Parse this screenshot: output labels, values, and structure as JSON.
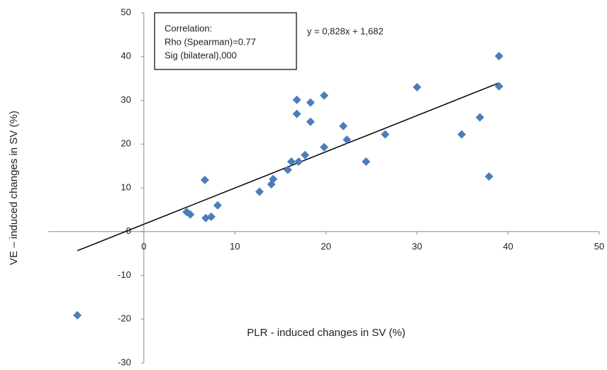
{
  "chart_data": {
    "type": "scatter",
    "x_label": "PLR - induced changes in SV (%)",
    "y_label": "VE – induced changes in SV (%)",
    "annotation": [
      "Correlation:",
      "Rho (Spearman)=0.77",
      "Sig (bilateral),000"
    ],
    "trendline": {
      "slope": 0.828,
      "intercept": 1.682,
      "label": "y = 0,828x + 1,682"
    },
    "xlim": [
      -10.5,
      50
    ],
    "xticks": [
      0,
      10,
      20,
      30,
      40,
      50
    ],
    "ylim": [
      -30,
      50
    ],
    "yticks": [
      -30,
      -20,
      -10,
      0,
      10,
      20,
      30,
      40,
      50
    ],
    "color": "#4a7ebb",
    "x": [
      -7.3,
      4.7,
      5.1,
      6.7,
      6.8,
      7.4,
      8.1,
      12.7,
      14.0,
      14.2,
      15.8,
      16.2,
      17.0,
      17.7,
      16.8,
      16.8,
      18.3,
      18.3,
      19.8,
      19.8,
      21.9,
      22.3,
      24.4,
      26.5,
      30.0,
      34.9,
      36.9,
      37.9,
      39.0,
      39.0
    ],
    "values": [
      -19.1,
      4.5,
      3.9,
      11.8,
      3.1,
      3.4,
      6.0,
      9.1,
      10.8,
      12.0,
      14.1,
      16.0,
      16.0,
      17.5,
      30.1,
      26.9,
      29.5,
      25.1,
      31.1,
      19.3,
      24.1,
      21.0,
      16.0,
      22.2,
      33.0,
      22.2,
      26.1,
      12.6,
      40.1,
      33.2
    ]
  }
}
